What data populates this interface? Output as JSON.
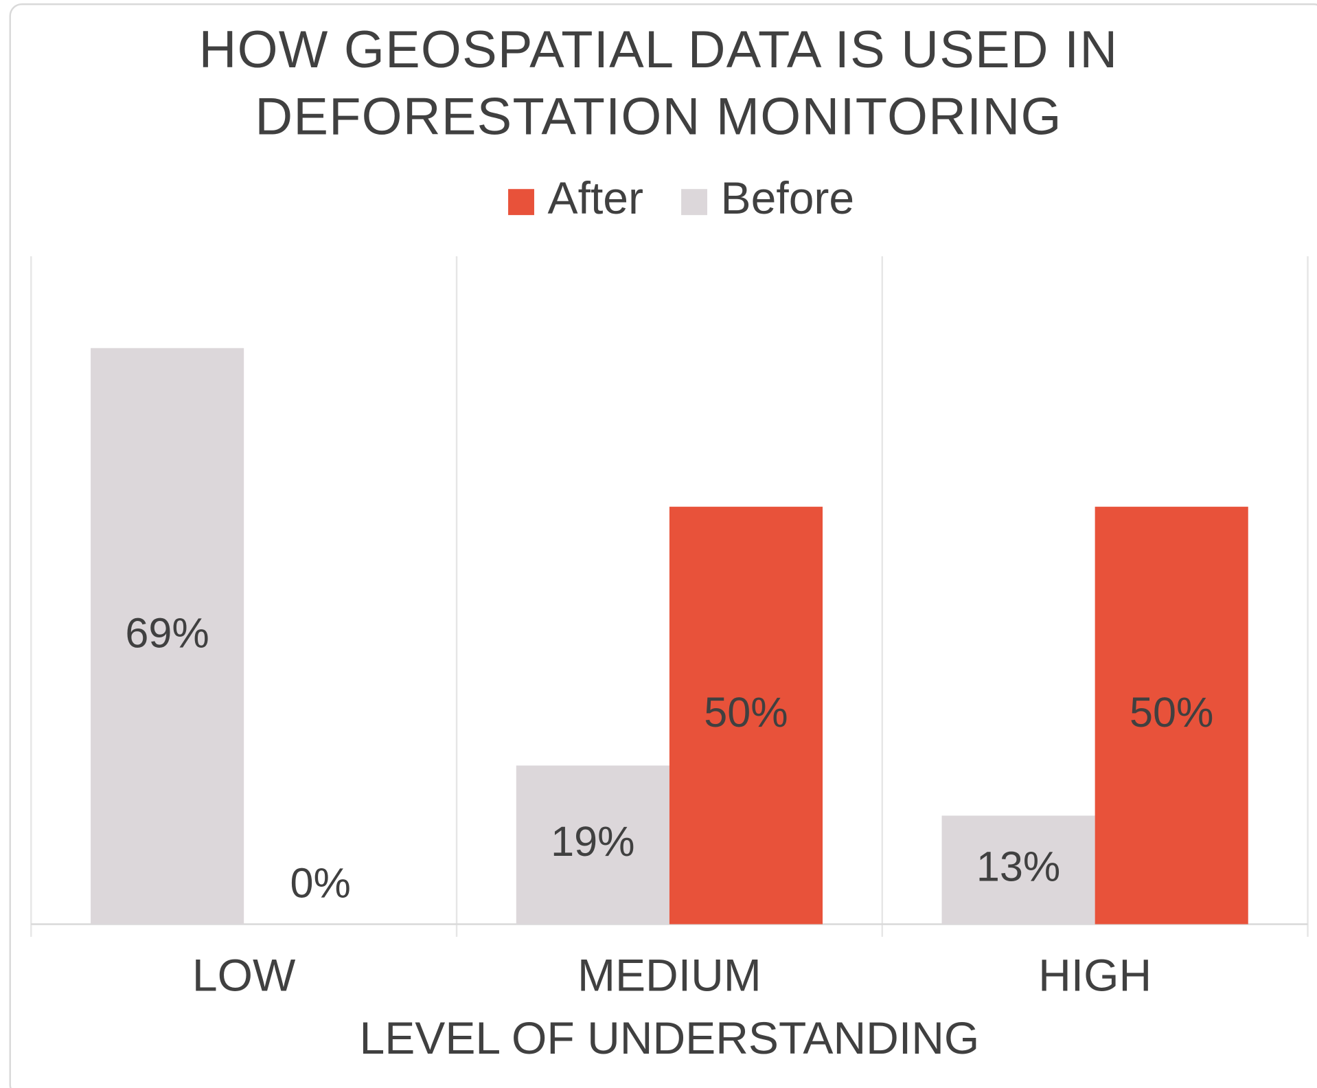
{
  "chart_data": {
    "type": "bar",
    "title": "HOW GEOSPATIAL DATA IS USED IN DEFORESTATION MONITORING",
    "x_label": "LEVEL OF UNDERSTANDING",
    "categories": [
      "LOW",
      "MEDIUM",
      "HIGH"
    ],
    "series": [
      {
        "name": "Before",
        "color": "#dcd7da",
        "values": [
          69,
          19,
          13
        ],
        "value_labels": [
          "69%",
          "19%",
          "13%"
        ]
      },
      {
        "name": "After",
        "color": "#e8523a",
        "values": [
          0,
          50,
          50
        ],
        "value_labels": [
          "0%",
          "50%",
          "50%"
        ]
      }
    ],
    "ylim": [
      0,
      80
    ],
    "legend": "top"
  }
}
